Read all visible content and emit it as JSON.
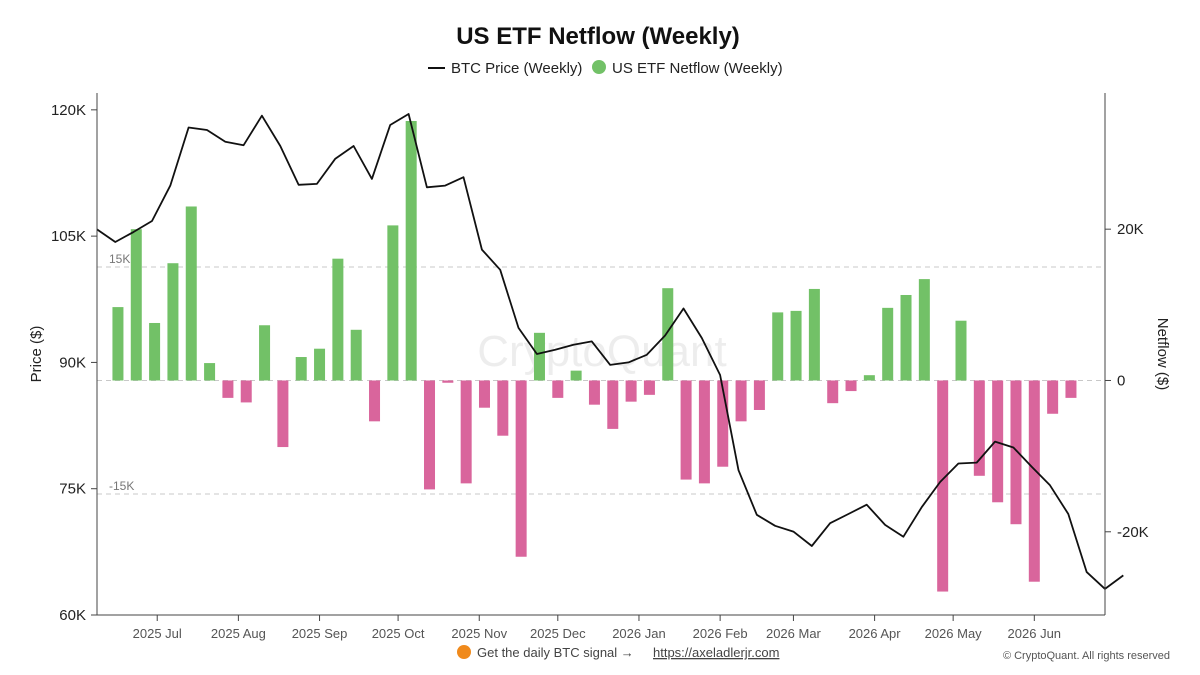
{
  "colors": {
    "positive": "#72c167",
    "negative": "#d9659c",
    "price_line": "#111111",
    "grid": "#c8c8c8",
    "axis": "#444444"
  },
  "chart_data": {
    "type": "bar",
    "title": "US ETF Netflow (Weekly)",
    "legend": {
      "placement": "top-center",
      "price_label": "BTC Price (Weekly)",
      "netflow_label": "US ETF Netflow (Weekly)"
    },
    "y_left": {
      "label": "Price ($)",
      "ylim": [
        60000,
        122000
      ],
      "ticks": [
        60000,
        75000,
        90000,
        105000,
        120000
      ],
      "tick_labels": [
        "60K",
        "75K",
        "90K",
        "105K",
        "120K"
      ]
    },
    "y_right": {
      "label": "Netflow ($)",
      "ylim": [
        -31000,
        38000
      ],
      "ticks": [
        -20000,
        0,
        20000
      ],
      "tick_labels": [
        "-20K",
        "0",
        "20K"
      ]
    },
    "reference_lines": [
      {
        "value": 15000,
        "label": "15K"
      },
      {
        "value": -15000,
        "label": "-15K"
      }
    ],
    "x_axis": {
      "start": "2025-06-08",
      "end": "2026-06-28",
      "ticks": [
        {
          "date": "2025-07-01",
          "label": "2025 Jul"
        },
        {
          "date": "2025-08-01",
          "label": "2025 Aug"
        },
        {
          "date": "2025-09-01",
          "label": "2025 Sep"
        },
        {
          "date": "2025-10-01",
          "label": "2025 Oct"
        },
        {
          "date": "2025-11-01",
          "label": "2025 Nov"
        },
        {
          "date": "2025-12-01",
          "label": "2025 Dec"
        },
        {
          "date": "2026-01-01",
          "label": "2026 Jan"
        },
        {
          "date": "2026-02-01",
          "label": "2026 Feb"
        },
        {
          "date": "2026-03-01",
          "label": "2026 Mar"
        },
        {
          "date": "2026-04-01",
          "label": "2026 Apr"
        },
        {
          "date": "2026-05-01",
          "label": "2026 May"
        },
        {
          "date": "2026-06-01",
          "label": "2026 Jun"
        }
      ]
    },
    "netflow": [
      {
        "date": "2025-06-16",
        "value": 9700
      },
      {
        "date": "2025-06-23",
        "value": 20000
      },
      {
        "date": "2025-06-30",
        "value": 7600
      },
      {
        "date": "2025-07-07",
        "value": 15500
      },
      {
        "date": "2025-07-14",
        "value": 23000
      },
      {
        "date": "2025-07-21",
        "value": 2300
      },
      {
        "date": "2025-07-28",
        "value": -2300
      },
      {
        "date": "2025-08-04",
        "value": -2900
      },
      {
        "date": "2025-08-11",
        "value": 7300
      },
      {
        "date": "2025-08-18",
        "value": -8800
      },
      {
        "date": "2025-08-25",
        "value": 3100
      },
      {
        "date": "2025-09-01",
        "value": 4200
      },
      {
        "date": "2025-09-08",
        "value": 16100
      },
      {
        "date": "2025-09-15",
        "value": 6700
      },
      {
        "date": "2025-09-22",
        "value": -5400
      },
      {
        "date": "2025-09-29",
        "value": 20500
      },
      {
        "date": "2025-10-06",
        "value": 34300
      },
      {
        "date": "2025-10-13",
        "value": -14400
      },
      {
        "date": "2025-10-20",
        "value": -300
      },
      {
        "date": "2025-10-27",
        "value": -13600
      },
      {
        "date": "2025-11-03",
        "value": -3600
      },
      {
        "date": "2025-11-10",
        "value": -7300
      },
      {
        "date": "2025-11-17",
        "value": -23300
      },
      {
        "date": "2025-11-24",
        "value": 6300
      },
      {
        "date": "2025-12-01",
        "value": -2300
      },
      {
        "date": "2025-12-08",
        "value": 1300
      },
      {
        "date": "2025-12-15",
        "value": -3200
      },
      {
        "date": "2025-12-22",
        "value": -6400
      },
      {
        "date": "2025-12-29",
        "value": -2800
      },
      {
        "date": "2026-01-05",
        "value": -1900
      },
      {
        "date": "2026-01-12",
        "value": 12200
      },
      {
        "date": "2026-01-19",
        "value": -13100
      },
      {
        "date": "2026-01-26",
        "value": -13600
      },
      {
        "date": "2026-02-02",
        "value": -11400
      },
      {
        "date": "2026-02-09",
        "value": -5400
      },
      {
        "date": "2026-02-16",
        "value": -3900
      },
      {
        "date": "2026-02-23",
        "value": 9000
      },
      {
        "date": "2026-03-02",
        "value": 9200
      },
      {
        "date": "2026-03-09",
        "value": 12100
      },
      {
        "date": "2026-03-16",
        "value": -3000
      },
      {
        "date": "2026-03-23",
        "value": -1400
      },
      {
        "date": "2026-03-30",
        "value": 700
      },
      {
        "date": "2026-04-06",
        "value": 9600
      },
      {
        "date": "2026-04-13",
        "value": 11300
      },
      {
        "date": "2026-04-20",
        "value": 13400
      },
      {
        "date": "2026-04-27",
        "value": -27900
      },
      {
        "date": "2026-05-04",
        "value": 7900
      },
      {
        "date": "2026-05-11",
        "value": -12600
      },
      {
        "date": "2026-05-18",
        "value": -16100
      },
      {
        "date": "2026-05-25",
        "value": -19000
      },
      {
        "date": "2026-06-01",
        "value": -26600
      },
      {
        "date": "2026-06-08",
        "value": -4400
      },
      {
        "date": "2026-06-15",
        "value": -2300
      }
    ],
    "price": [
      {
        "date": "2025-06-08",
        "value": 105800
      },
      {
        "date": "2025-06-15",
        "value": 104300
      },
      {
        "date": "2025-06-22",
        "value": 105500
      },
      {
        "date": "2025-06-29",
        "value": 106800
      },
      {
        "date": "2025-07-06",
        "value": 111000
      },
      {
        "date": "2025-07-13",
        "value": 117900
      },
      {
        "date": "2025-07-20",
        "value": 117600
      },
      {
        "date": "2025-07-27",
        "value": 116200
      },
      {
        "date": "2025-08-03",
        "value": 115800
      },
      {
        "date": "2025-08-10",
        "value": 119300
      },
      {
        "date": "2025-08-17",
        "value": 115700
      },
      {
        "date": "2025-08-24",
        "value": 111100
      },
      {
        "date": "2025-08-31",
        "value": 111200
      },
      {
        "date": "2025-09-07",
        "value": 114200
      },
      {
        "date": "2025-09-14",
        "value": 115700
      },
      {
        "date": "2025-09-21",
        "value": 111800
      },
      {
        "date": "2025-09-28",
        "value": 118200
      },
      {
        "date": "2025-10-05",
        "value": 119500
      },
      {
        "date": "2025-10-12",
        "value": 110800
      },
      {
        "date": "2025-10-19",
        "value": 111000
      },
      {
        "date": "2025-10-26",
        "value": 112000
      },
      {
        "date": "2025-11-02",
        "value": 103400
      },
      {
        "date": "2025-11-09",
        "value": 101000
      },
      {
        "date": "2025-11-16",
        "value": 94100
      },
      {
        "date": "2025-11-23",
        "value": 91000
      },
      {
        "date": "2025-11-30",
        "value": 91500
      },
      {
        "date": "2025-12-07",
        "value": 92100
      },
      {
        "date": "2025-12-14",
        "value": 92500
      },
      {
        "date": "2025-12-21",
        "value": 89700
      },
      {
        "date": "2025-12-28",
        "value": 90000
      },
      {
        "date": "2026-01-04",
        "value": 90900
      },
      {
        "date": "2026-01-11",
        "value": 93200
      },
      {
        "date": "2026-01-18",
        "value": 96400
      },
      {
        "date": "2026-01-25",
        "value": 92900
      },
      {
        "date": "2026-02-01",
        "value": 88500
      },
      {
        "date": "2026-02-08",
        "value": 77200
      },
      {
        "date": "2026-02-15",
        "value": 71900
      },
      {
        "date": "2026-02-22",
        "value": 70600
      },
      {
        "date": "2026-03-01",
        "value": 69900
      },
      {
        "date": "2026-03-08",
        "value": 68200
      },
      {
        "date": "2026-03-15",
        "value": 70900
      },
      {
        "date": "2026-03-22",
        "value": 72000
      },
      {
        "date": "2026-03-29",
        "value": 73100
      },
      {
        "date": "2026-04-05",
        "value": 70700
      },
      {
        "date": "2026-04-12",
        "value": 69300
      },
      {
        "date": "2026-04-19",
        "value": 72800
      },
      {
        "date": "2026-04-26",
        "value": 75800
      },
      {
        "date": "2026-05-03",
        "value": 78000
      },
      {
        "date": "2026-05-10",
        "value": 78100
      },
      {
        "date": "2026-05-17",
        "value": 80600
      },
      {
        "date": "2026-05-24",
        "value": 79900
      },
      {
        "date": "2026-05-31",
        "value": 77600
      },
      {
        "date": "2026-06-07",
        "value": 75400
      },
      {
        "date": "2026-06-14",
        "value": 72000
      },
      {
        "date": "2026-06-21",
        "value": 65100
      },
      {
        "date": "2026-06-28",
        "value": 63100
      },
      {
        "date": "2026-07-05",
        "value": 64700
      }
    ]
  },
  "watermark": "CryptoQuant",
  "footer": {
    "signal_text": "Get the daily BTC signal →",
    "link_text": "https://axeladlerjr.com",
    "copyright": "© CryptoQuant. All rights reserved"
  }
}
